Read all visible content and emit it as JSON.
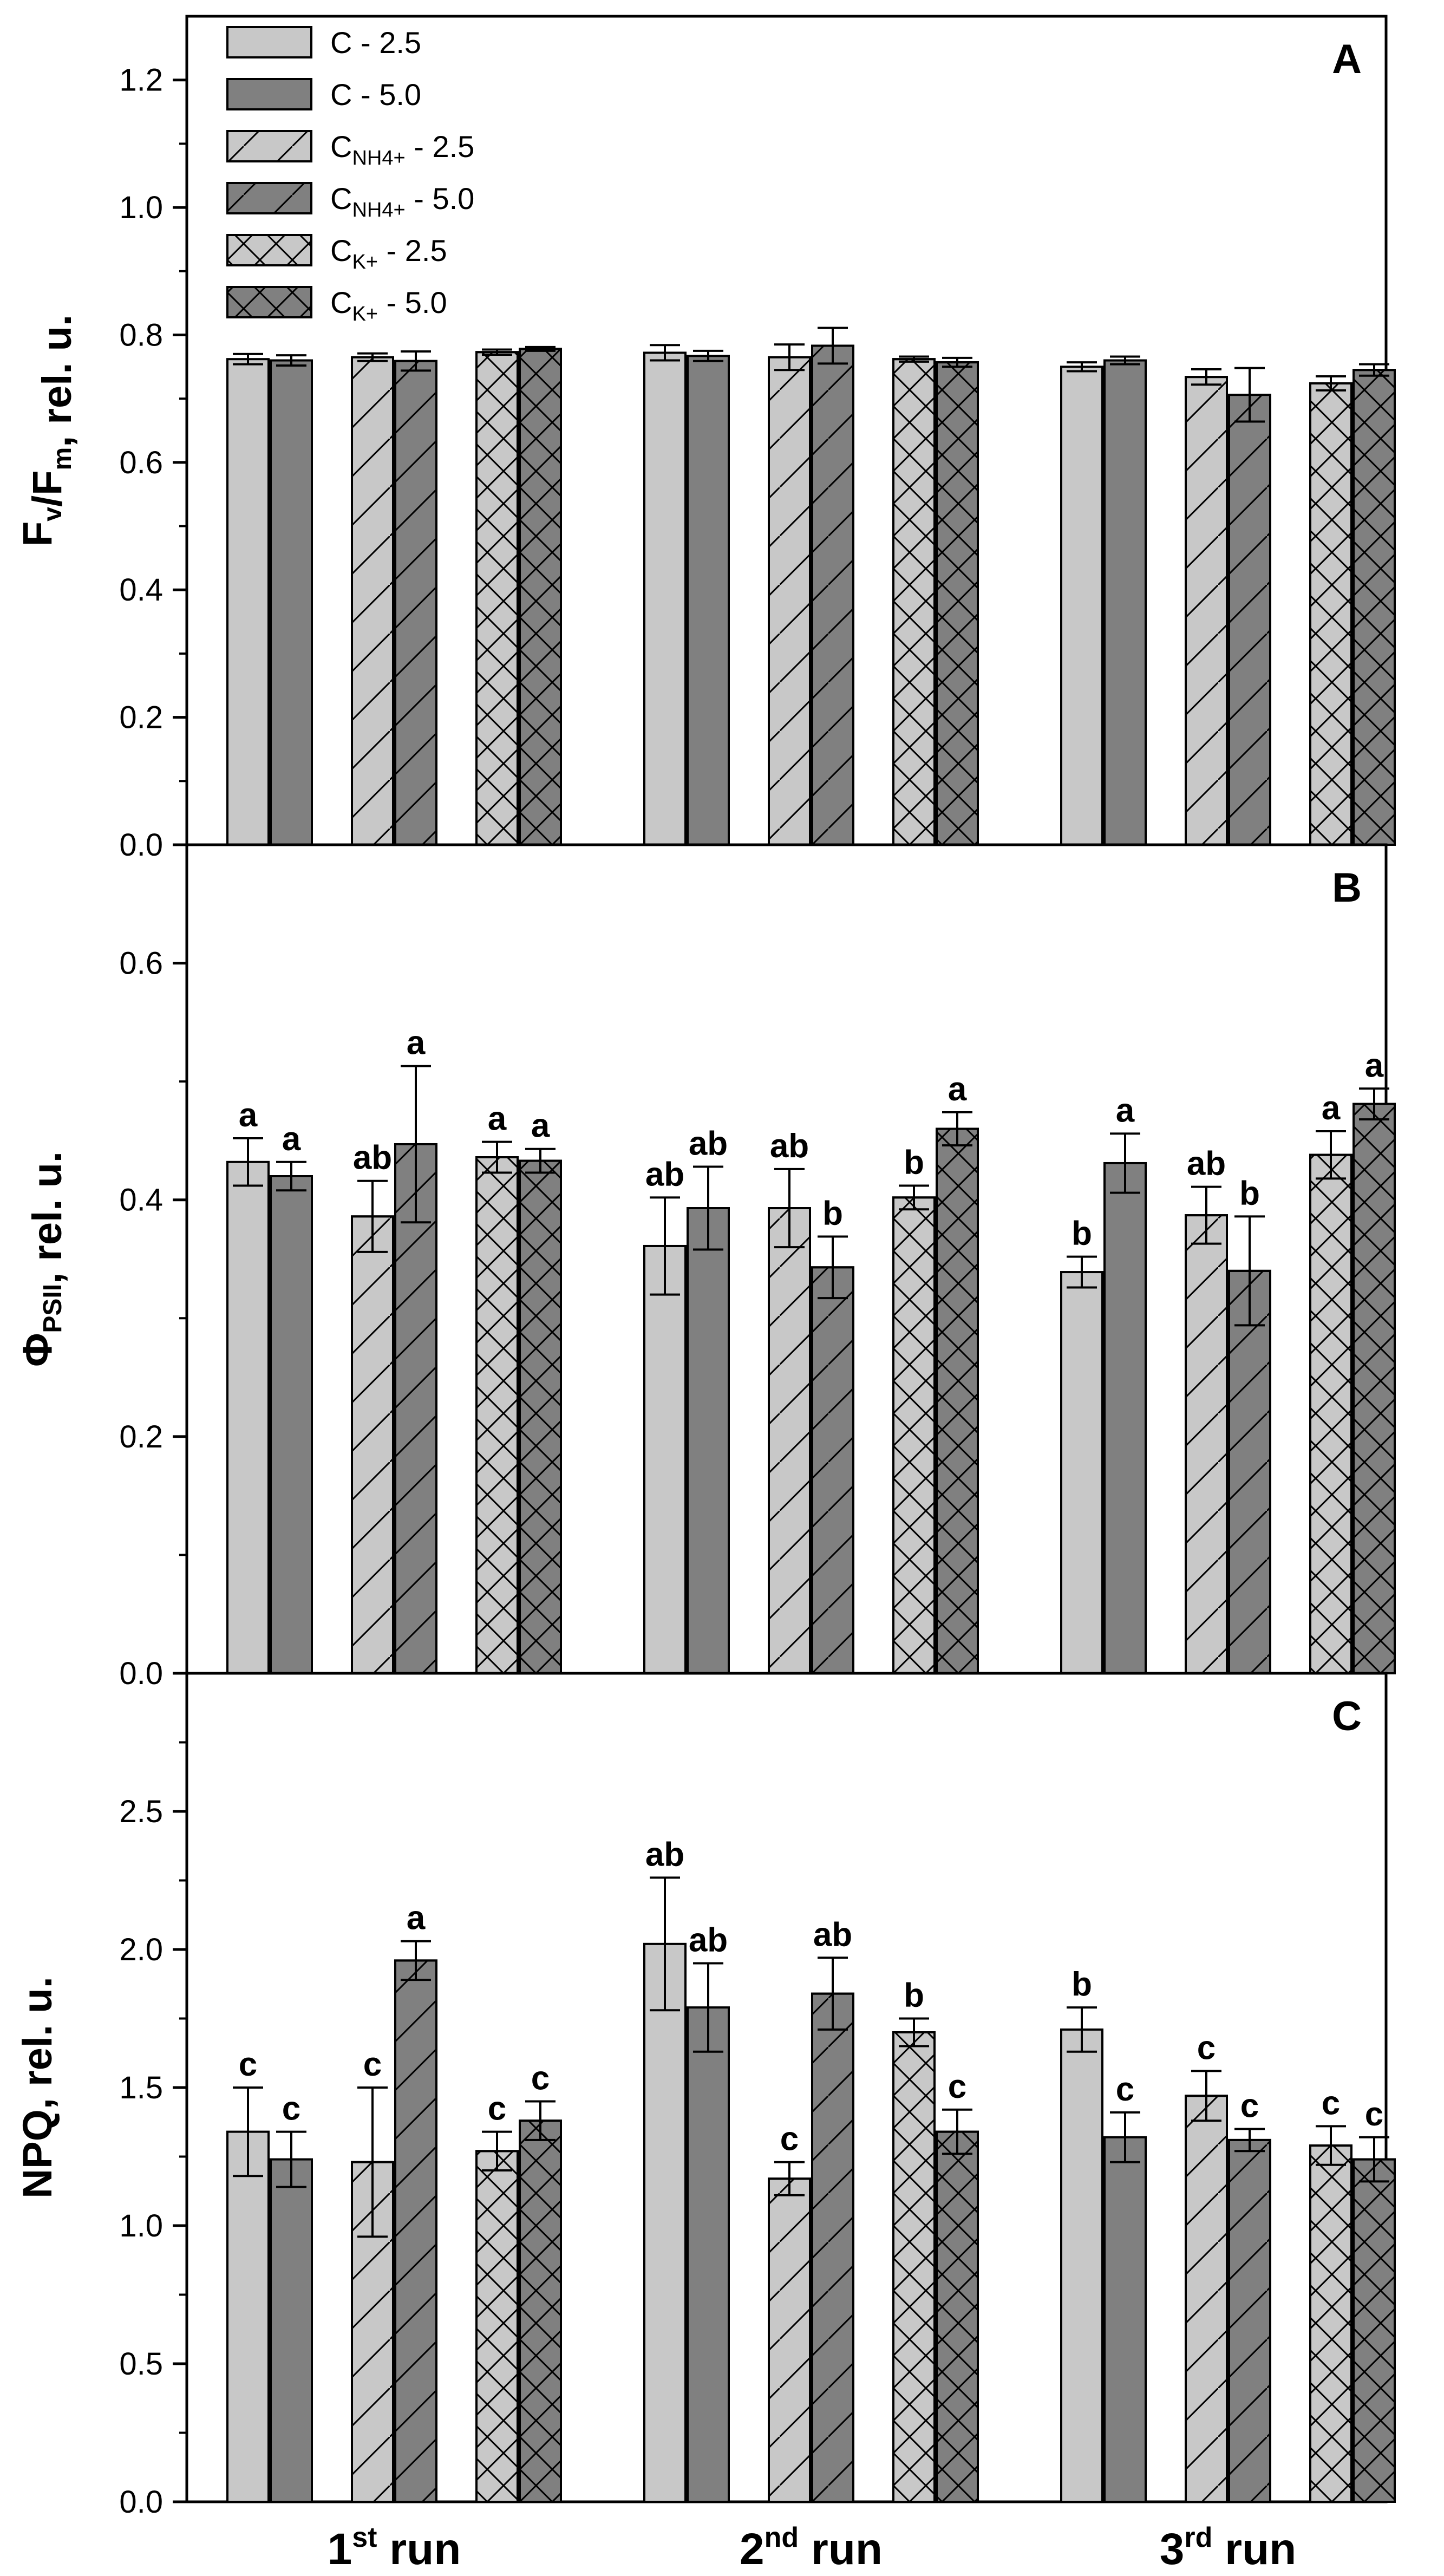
{
  "colors": {
    "light": "#c8c8c8",
    "dark": "#808080",
    "axis": "#000000"
  },
  "chart_data": {
    "type": "bar",
    "layout": "three stacked panels sharing x categories",
    "categories": [
      {
        "base": "1",
        "sup": "st",
        "rest": " run"
      },
      {
        "base": "2",
        "sup": "nd",
        "rest": " run"
      },
      {
        "base": "3",
        "sup": "rd",
        "rest": " run"
      }
    ],
    "legend_position": "top-left",
    "series": [
      {
        "key": "c25",
        "label": "C - 2.5",
        "label_base": "C",
        "label_sub": "",
        "label_tail": " - 2.5",
        "fill": "light",
        "pattern": "none"
      },
      {
        "key": "c50",
        "label": "C - 5.0",
        "label_base": "C",
        "label_sub": "",
        "label_tail": " - 5.0",
        "fill": "dark",
        "pattern": "none"
      },
      {
        "key": "nh25",
        "label": "CNH4+ - 2.5",
        "label_base": "C",
        "label_sub": "NH4+",
        "label_tail": " - 2.5",
        "fill": "light",
        "pattern": "diagonal"
      },
      {
        "key": "nh50",
        "label": "CNH4+ - 5.0",
        "label_base": "C",
        "label_sub": "NH4+",
        "label_tail": " - 5.0",
        "fill": "dark",
        "pattern": "diagonal"
      },
      {
        "key": "k25",
        "label": "CK+ - 2.5",
        "label_base": "C",
        "label_sub": "K+",
        "label_tail": " - 2.5",
        "fill": "light",
        "pattern": "crosshatch"
      },
      {
        "key": "k50",
        "label": "CK+ - 5.0",
        "label_base": "C",
        "label_sub": "K+",
        "label_tail": " - 5.0",
        "fill": "dark",
        "pattern": "crosshatch"
      }
    ],
    "panels": [
      {
        "letter": "A",
        "ylabel_parts": [
          {
            "t": "F",
            "s": ""
          },
          {
            "t": "v",
            "s": "sub"
          },
          {
            "t": "/F",
            "s": ""
          },
          {
            "t": "m",
            "s": "sub"
          },
          {
            "t": ", rel. u.",
            "s": ""
          }
        ],
        "ylim": [
          0,
          1.3
        ],
        "yticks": [
          0.0,
          0.2,
          0.4,
          0.6,
          0.8,
          1.0,
          1.2
        ],
        "ytick_labels": [
          "0.0",
          "0.2",
          "0.4",
          "0.6",
          "0.8",
          "1.0",
          "1.2"
        ],
        "values": [
          [
            0.762,
            0.76,
            0.765,
            0.759,
            0.773,
            0.778
          ],
          [
            0.772,
            0.767,
            0.765,
            0.783,
            0.762,
            0.757
          ],
          [
            0.75,
            0.76,
            0.734,
            0.706,
            0.724,
            0.745
          ]
        ],
        "errors": [
          [
            0.008,
            0.008,
            0.006,
            0.015,
            0.004,
            0.003
          ],
          [
            0.012,
            0.008,
            0.02,
            0.028,
            0.004,
            0.007
          ],
          [
            0.007,
            0.006,
            0.012,
            0.042,
            0.011,
            0.009
          ]
        ],
        "sig": [
          [
            "",
            "",
            "",
            "",
            "",
            ""
          ],
          [
            "",
            "",
            "",
            "",
            "",
            ""
          ],
          [
            "",
            "",
            "",
            "",
            "",
            ""
          ]
        ]
      },
      {
        "letter": "B",
        "ylabel_parts": [
          {
            "t": "Φ",
            "s": ""
          },
          {
            "t": "PSII",
            "s": "sub"
          },
          {
            "t": ", rel. u.",
            "s": ""
          }
        ],
        "ylim": [
          0,
          0.7
        ],
        "yticks": [
          0.0,
          0.2,
          0.4,
          0.6
        ],
        "ytick_labels": [
          "0.0",
          "0.2",
          "0.4",
          "0.6"
        ],
        "values": [
          [
            0.432,
            0.42,
            0.386,
            0.447,
            0.436,
            0.433
          ],
          [
            0.361,
            0.393,
            0.393,
            0.343,
            0.402,
            0.46
          ],
          [
            0.339,
            0.431,
            0.387,
            0.34,
            0.438,
            0.481
          ]
        ],
        "errors": [
          [
            0.02,
            0.012,
            0.03,
            0.066,
            0.013,
            0.01
          ],
          [
            0.041,
            0.035,
            0.033,
            0.026,
            0.01,
            0.014
          ],
          [
            0.013,
            0.025,
            0.024,
            0.046,
            0.02,
            0.013
          ]
        ],
        "sig": [
          [
            "a",
            "a",
            "ab",
            "a",
            "a",
            "a"
          ],
          [
            "ab",
            "ab",
            "ab",
            "b",
            "b",
            "a"
          ],
          [
            "b",
            "a",
            "ab",
            "b",
            "a",
            "a"
          ]
        ]
      },
      {
        "letter": "C",
        "ylabel_parts": [
          {
            "t": "NPQ, rel. u.",
            "s": ""
          }
        ],
        "ylim": [
          0,
          3.0
        ],
        "yticks": [
          0.0,
          0.5,
          1.0,
          1.5,
          2.0,
          2.5
        ],
        "ytick_labels": [
          "0.0",
          "0.5",
          "1.0",
          "1.5",
          "2.0",
          "2.5"
        ],
        "values": [
          [
            1.34,
            1.24,
            1.23,
            1.96,
            1.27,
            1.38
          ],
          [
            2.02,
            1.79,
            1.17,
            1.84,
            1.7,
            1.34
          ],
          [
            1.71,
            1.32,
            1.47,
            1.31,
            1.29,
            1.24
          ]
        ],
        "errors": [
          [
            0.16,
            0.1,
            0.27,
            0.07,
            0.07,
            0.07
          ],
          [
            0.24,
            0.16,
            0.06,
            0.13,
            0.05,
            0.08
          ],
          [
            0.08,
            0.09,
            0.09,
            0.04,
            0.07,
            0.08
          ]
        ],
        "sig": [
          [
            "c",
            "c",
            "c",
            "a",
            "c",
            "c"
          ],
          [
            "ab",
            "ab",
            "c",
            "ab",
            "b",
            "c"
          ],
          [
            "b",
            "c",
            "c",
            "c",
            "c",
            "c"
          ]
        ]
      }
    ]
  }
}
